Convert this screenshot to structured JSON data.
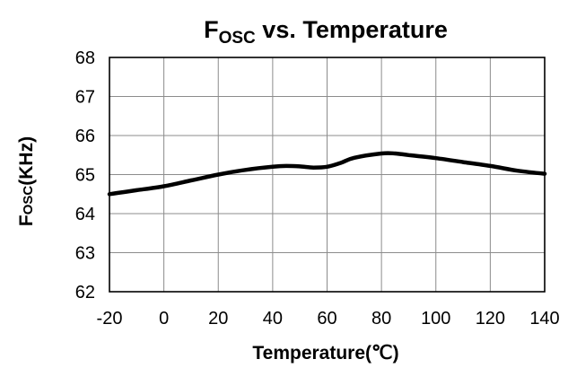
{
  "chart_data": {
    "type": "line",
    "title": {
      "main": "F",
      "sub": "OSC",
      "rest": " vs. Temperature"
    },
    "xlabel": "Temperature(℃)",
    "ylabel": {
      "main": "F",
      "sub": "OSC",
      "rest": "(KHz)"
    },
    "xlim": [
      -20,
      140
    ],
    "ylim": [
      62,
      68
    ],
    "x_ticks": [
      -20,
      0,
      20,
      40,
      60,
      80,
      100,
      120,
      140
    ],
    "y_ticks": [
      62,
      63,
      64,
      65,
      66,
      67,
      68
    ],
    "grid": true,
    "series": [
      {
        "x": [
          -20,
          -15,
          -10,
          0,
          10,
          20,
          30,
          40,
          45,
          50,
          55,
          60,
          65,
          70,
          80,
          85,
          90,
          100,
          110,
          120,
          130,
          140
        ],
        "y": [
          64.5,
          64.55,
          64.6,
          64.7,
          64.85,
          65.0,
          65.12,
          65.2,
          65.22,
          65.21,
          65.18,
          65.2,
          65.3,
          65.43,
          65.54,
          65.54,
          65.5,
          65.42,
          65.32,
          65.22,
          65.1,
          65.02
        ],
        "color": "#000000"
      }
    ]
  }
}
